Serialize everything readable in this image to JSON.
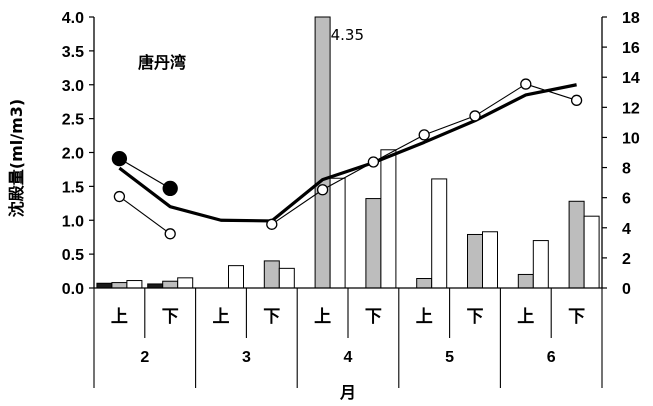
{
  "chart_data": {
    "type": "bar",
    "title": "唐丹湾",
    "ylabel": "沈殿量(ml/m3)",
    "xlabel": "月",
    "ylim": [
      0,
      4.0
    ],
    "y2lim": [
      0,
      18
    ],
    "yticks": [
      "0.0",
      "0.5",
      "1.0",
      "1.5",
      "2.0",
      "2.5",
      "3.0",
      "3.5",
      "4.0"
    ],
    "y2ticks": [
      "0",
      "2",
      "4",
      "6",
      "8",
      "10",
      "12",
      "14",
      "16",
      "18"
    ],
    "periods": [
      "上",
      "下",
      "上",
      "下",
      "上",
      "下",
      "上",
      "下",
      "上",
      "下"
    ],
    "months": [
      "2",
      "3",
      "4",
      "5",
      "6"
    ],
    "series": [
      {
        "kind": "bar-black",
        "values": [
          0.07,
          0.06,
          null,
          null,
          null,
          null,
          null,
          null,
          null,
          null
        ]
      },
      {
        "kind": "bar-gray",
        "values": [
          0.08,
          0.1,
          null,
          0.4,
          4.0,
          1.32,
          0.14,
          0.79,
          0.2,
          1.28
        ]
      },
      {
        "kind": "bar-white",
        "values": [
          0.11,
          0.15,
          0.33,
          0.29,
          1.62,
          2.04,
          1.61,
          0.83,
          0.7,
          1.06
        ]
      },
      {
        "kind": "line-filled-circle",
        "values": [
          1.91,
          1.47,
          null,
          null,
          null,
          null,
          null,
          null,
          null,
          null
        ]
      },
      {
        "kind": "line-open-circle",
        "values": [
          1.35,
          0.8,
          null,
          0.94,
          1.45,
          1.86,
          2.26,
          2.54,
          3.01,
          2.77
        ]
      },
      {
        "kind": "line-thick",
        "values": [
          1.77,
          1.2,
          1.0,
          0.99,
          1.6,
          1.85,
          2.15,
          2.47,
          2.85,
          3.0
        ]
      }
    ],
    "annotations": [
      {
        "text": "4.35",
        "category_index": 4
      }
    ]
  }
}
